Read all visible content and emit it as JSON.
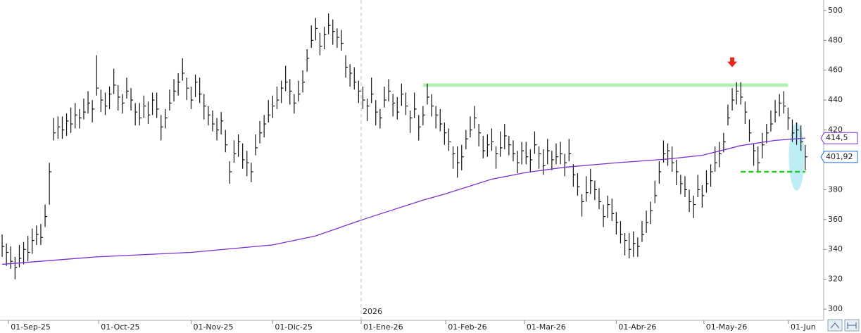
{
  "chart_data": {
    "type": "ohlc",
    "xlim": [
      -0.5,
      191.3
    ],
    "ylim": [
      292.5,
      507
    ],
    "yticks": [
      300,
      320,
      340,
      360,
      380,
      400,
      420,
      440,
      460,
      480,
      500
    ],
    "xticks": [
      {
        "value": 1.5,
        "label": "01-Sep-25"
      },
      {
        "value": 22.5,
        "label": "01-Oct-25"
      },
      {
        "value": 44,
        "label": "01-Nov-25"
      },
      {
        "value": 63,
        "label": "01-Dic-25"
      },
      {
        "value": 83.6,
        "label": "01-Ene-26"
      },
      {
        "value": 103.3,
        "label": "01-Feb-26"
      },
      {
        "value": 121.6,
        "label": "01-Mar-26"
      },
      {
        "value": 143,
        "label": "01-Abr-26"
      },
      {
        "value": 163.4,
        "label": "01-May-26"
      },
      {
        "value": 183.1,
        "label": "01-Jun"
      }
    ],
    "year_marker": {
      "x": 83.6,
      "label": "2026"
    },
    "price": {
      "color": "#111",
      "high": [
        350,
        344,
        342,
        335,
        343,
        345,
        349,
        354,
        356,
        357,
        370,
        398,
        428,
        429,
        429,
        431,
        435,
        438,
        434,
        441,
        446,
        440,
        470,
        447,
        445,
        449,
        461,
        450,
        444,
        455,
        448,
        438,
        438,
        443,
        439,
        445,
        445,
        430,
        434,
        447,
        454,
        458,
        468,
        455,
        449,
        457,
        455,
        444,
        436,
        433,
        428,
        432,
        420,
        399,
        413,
        417,
        411,
        406,
        398,
        417,
        426,
        430,
        440,
        443,
        449,
        453,
        463,
        454,
        444,
        453,
        460,
        474,
        490,
        495,
        485,
        489,
        498,
        494,
        488,
        487,
        470,
        464,
        462,
        453,
        449,
        441,
        455,
        440,
        434,
        449,
        454,
        444,
        442,
        451,
        445,
        433,
        445,
        430,
        436,
        451,
        444,
        436,
        434,
        425,
        421,
        409,
        409,
        410,
        420,
        429,
        436,
        424,
        416,
        417,
        421,
        409,
        419,
        424,
        416,
        413,
        406,
        412,
        412,
        407,
        419,
        409,
        407,
        414,
        406,
        411,
        412,
        404,
        414,
        397,
        391,
        377,
        389,
        394,
        386,
        381,
        370,
        376,
        374,
        365,
        359,
        351,
        351,
        352,
        348,
        359,
        366,
        372,
        386,
        399,
        413,
        411,
        409,
        400,
        390,
        389,
        380,
        376,
        390,
        383,
        393,
        397,
        409,
        412,
        418,
        437,
        448,
        452,
        452,
        439,
        427,
        411,
        409,
        418,
        424,
        433,
        440,
        444,
        446,
        435,
        427,
        425,
        423,
        410
      ],
      "low": [
        335,
        329,
        327,
        320,
        328,
        330,
        332,
        337,
        343,
        343,
        355,
        370,
        413,
        414,
        414,
        416,
        418,
        421,
        421,
        427,
        431,
        425,
        443,
        432,
        430,
        434,
        444,
        433,
        431,
        441,
        433,
        423,
        423,
        428,
        424,
        430,
        428,
        413,
        421,
        433,
        439,
        443,
        453,
        440,
        434,
        442,
        438,
        427,
        423,
        419,
        413,
        417,
        405,
        384,
        398,
        402,
        394,
        389,
        385,
        403,
        411,
        415,
        425,
        428,
        434,
        438,
        446,
        437,
        431,
        439,
        445,
        459,
        475,
        480,
        470,
        474,
        484,
        477,
        475,
        473,
        455,
        449,
        447,
        438,
        434,
        426,
        438,
        423,
        421,
        435,
        439,
        429,
        427,
        436,
        430,
        418,
        428,
        413,
        423,
        437,
        429,
        421,
        419,
        410,
        406,
        394,
        388,
        393,
        407,
        415,
        421,
        409,
        401,
        402,
        406,
        394,
        402,
        407,
        403,
        399,
        391,
        397,
        397,
        392,
        404,
        394,
        390,
        397,
        393,
        397,
        397,
        389,
        399,
        382,
        376,
        362,
        372,
        377,
        373,
        367,
        355,
        361,
        359,
        350,
        344,
        336,
        334,
        335,
        335,
        345,
        351,
        357,
        371,
        384,
        398,
        396,
        392,
        383,
        377,
        375,
        365,
        361,
        375,
        368,
        378,
        382,
        392,
        395,
        405,
        423,
        433,
        437,
        437,
        424,
        412,
        396,
        392,
        401,
        411,
        419,
        425,
        429,
        431,
        420,
        412,
        410,
        406,
        393
      ],
      "close": [
        342,
        338,
        332,
        328,
        334,
        340,
        338,
        346,
        350,
        348,
        362,
        392,
        418,
        422,
        420,
        426,
        424,
        430,
        428,
        432,
        438,
        434,
        448,
        440,
        436,
        444,
        450,
        442,
        438,
        446,
        440,
        432,
        428,
        436,
        430,
        440,
        434,
        422,
        428,
        438,
        446,
        452,
        458,
        448,
        440,
        452,
        444,
        436,
        430,
        424,
        420,
        426,
        410,
        392,
        404,
        412,
        400,
        398,
        392,
        408,
        418,
        424,
        430,
        436,
        440,
        448,
        452,
        446,
        438,
        444,
        452,
        468,
        480,
        488,
        476,
        484,
        490,
        486,
        482,
        478,
        462,
        458,
        452,
        446,
        440,
        436,
        444,
        432,
        428,
        440,
        446,
        438,
        432,
        444,
        436,
        428,
        434,
        422,
        430,
        442,
        436,
        430,
        424,
        418,
        412,
        404,
        398,
        402,
        414,
        420,
        428,
        418,
        406,
        410,
        412,
        404,
        408,
        416,
        410,
        404,
        398,
        406,
        402,
        400,
        410,
        404,
        396,
        406,
        400,
        402,
        404,
        398,
        404,
        390,
        382,
        372,
        378,
        386,
        380,
        372,
        362,
        370,
        364,
        358,
        350,
        346,
        340,
        344,
        342,
        350,
        358,
        366,
        376,
        392,
        404,
        406,
        398,
        392,
        384,
        380,
        372,
        370,
        380,
        376,
        384,
        392,
        398,
        404,
        412,
        428,
        440,
        446,
        442,
        432,
        418,
        406,
        398,
        410,
        418,
        424,
        432,
        438,
        436,
        428,
        418,
        420,
        412,
        402
      ]
    },
    "moving_average": {
      "color": "#7a2fd0",
      "x": [
        0,
        22,
        44,
        63,
        73,
        84,
        98,
        103,
        114,
        122,
        131,
        143,
        155,
        163,
        172,
        180,
        187
      ],
      "values": [
        330,
        335,
        338,
        343,
        349,
        360,
        373,
        377,
        387,
        391.5,
        395,
        398,
        400.5,
        403,
        409.5,
        413,
        414.5
      ]
    },
    "price_labels": [
      {
        "value": 414.5,
        "label": "414,5",
        "color": "#7a2fd0"
      },
      {
        "value": 401.92,
        "label": "401,92",
        "color": "#1e6fc4"
      }
    ],
    "resistance": {
      "value": 450,
      "x": [
        98,
        183
      ],
      "color": "#b4f0b4"
    },
    "support": {
      "value": 392,
      "x": [
        172,
        187
      ],
      "color": "#22cc22"
    },
    "arrow": {
      "x": 170,
      "y": 462,
      "color": "#e8261c"
    },
    "highlight": {
      "x": 185,
      "y": 402
    }
  }
}
